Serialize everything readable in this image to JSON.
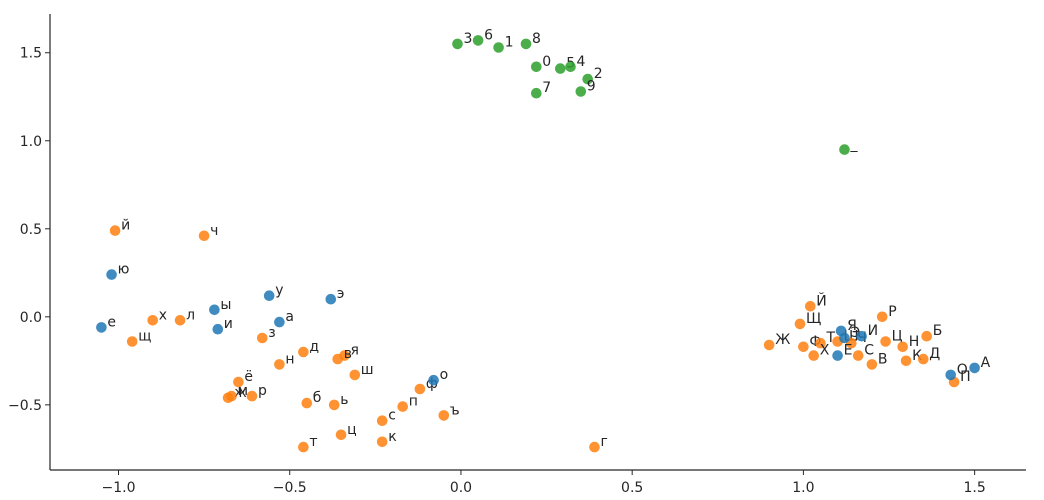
{
  "chart_data": {
    "type": "scatter",
    "title": "",
    "xlabel": "",
    "ylabel": "",
    "xlim": [
      -1.2,
      1.65
    ],
    "ylim": [
      -0.87,
      1.72
    ],
    "grid": false,
    "x_ticks": [
      {
        "value": -1.0,
        "label": "−1.0"
      },
      {
        "value": -0.5,
        "label": "−0.5"
      },
      {
        "value": 0.0,
        "label": "0.0"
      },
      {
        "value": 0.5,
        "label": "0.5"
      },
      {
        "value": 1.0,
        "label": "1.0"
      },
      {
        "value": 1.5,
        "label": "1.5"
      }
    ],
    "y_ticks": [
      {
        "value": -0.5,
        "label": "−0.5"
      },
      {
        "value": 0.0,
        "label": "0.0"
      },
      {
        "value": 0.5,
        "label": "0.5"
      },
      {
        "value": 1.0,
        "label": "1.0"
      },
      {
        "value": 1.5,
        "label": "1.5"
      }
    ],
    "series": [
      {
        "color": "#ff7f0e",
        "points": [
          {
            "label": "й",
            "x": -1.01,
            "y": 0.49
          },
          {
            "label": "ч",
            "x": -0.75,
            "y": 0.46
          },
          {
            "label": "х",
            "x": -0.9,
            "y": -0.02
          },
          {
            "label": "л",
            "x": -0.82,
            "y": -0.02
          },
          {
            "label": "щ",
            "x": -0.96,
            "y": -0.14
          },
          {
            "label": "з",
            "x": -0.58,
            "y": -0.12
          },
          {
            "label": "д",
            "x": -0.46,
            "y": -0.2
          },
          {
            "label": "н",
            "x": -0.53,
            "y": -0.27
          },
          {
            "label": "я",
            "x": -0.34,
            "y": -0.22
          },
          {
            "label": "в",
            "x": -0.36,
            "y": -0.24
          },
          {
            "label": "ш",
            "x": -0.31,
            "y": -0.33
          },
          {
            "label": "ё",
            "x": -0.65,
            "y": -0.37
          },
          {
            "label": "ж",
            "x": -0.68,
            "y": -0.46
          },
          {
            "label": "м",
            "x": -0.67,
            "y": -0.45
          },
          {
            "label": "р",
            "x": -0.61,
            "y": -0.45
          },
          {
            "label": "б",
            "x": -0.45,
            "y": -0.49
          },
          {
            "label": "ь",
            "x": -0.37,
            "y": -0.5
          },
          {
            "label": "с",
            "x": -0.23,
            "y": -0.59
          },
          {
            "label": "п",
            "x": -0.17,
            "y": -0.51
          },
          {
            "label": "ф",
            "x": -0.12,
            "y": -0.41
          },
          {
            "label": "ъ",
            "x": -0.05,
            "y": -0.56
          },
          {
            "label": "ц",
            "x": -0.35,
            "y": -0.67
          },
          {
            "label": "к",
            "x": -0.23,
            "y": -0.71
          },
          {
            "label": "т",
            "x": -0.46,
            "y": -0.74
          },
          {
            "label": "г",
            "x": 0.39,
            "y": -0.74
          },
          {
            "label": "Й",
            "x": 1.02,
            "y": 0.06
          },
          {
            "label": "Щ",
            "x": 0.99,
            "y": -0.04
          },
          {
            "label": "Р",
            "x": 1.23,
            "y": 0.0
          },
          {
            "label": "Б",
            "x": 1.36,
            "y": -0.11
          },
          {
            "label": "Ж",
            "x": 0.9,
            "y": -0.16
          },
          {
            "label": "Ф",
            "x": 1.0,
            "y": -0.17
          },
          {
            "label": "Т",
            "x": 1.05,
            "y": -0.15
          },
          {
            "label": "Х",
            "x": 1.03,
            "y": -0.22
          },
          {
            "label": "Ш",
            "x": 1.1,
            "y": -0.14
          },
          {
            "label": "Ч",
            "x": 1.14,
            "y": -0.15
          },
          {
            "label": "Ц",
            "x": 1.24,
            "y": -0.14
          },
          {
            "label": "Н",
            "x": 1.29,
            "y": -0.17
          },
          {
            "label": "С",
            "x": 1.16,
            "y": -0.22
          },
          {
            "label": "В",
            "x": 1.2,
            "y": -0.27
          },
          {
            "label": "К",
            "x": 1.3,
            "y": -0.25
          },
          {
            "label": "Д",
            "x": 1.35,
            "y": -0.24
          },
          {
            "label": "П",
            "x": 1.44,
            "y": -0.37
          }
        ]
      },
      {
        "color": "#1f77b4",
        "points": [
          {
            "label": "ю",
            "x": -1.02,
            "y": 0.24
          },
          {
            "label": "е",
            "x": -1.05,
            "y": -0.06
          },
          {
            "label": "ы",
            "x": -0.72,
            "y": 0.04
          },
          {
            "label": "и",
            "x": -0.71,
            "y": -0.07
          },
          {
            "label": "у",
            "x": -0.56,
            "y": 0.12
          },
          {
            "label": "а",
            "x": -0.53,
            "y": -0.03
          },
          {
            "label": "э",
            "x": -0.38,
            "y": 0.1
          },
          {
            "label": "о",
            "x": -0.08,
            "y": -0.36
          },
          {
            "label": "Я",
            "x": 1.11,
            "y": -0.08
          },
          {
            "label": "Э",
            "x": 1.12,
            "y": -0.12
          },
          {
            "label": "И",
            "x": 1.17,
            "y": -0.11
          },
          {
            "label": "Е",
            "x": 1.1,
            "y": -0.22
          },
          {
            "label": "О",
            "x": 1.43,
            "y": -0.33
          },
          {
            "label": "А",
            "x": 1.5,
            "y": -0.29
          }
        ]
      },
      {
        "color": "#2ca02c",
        "points": [
          {
            "label": "3",
            "x": -0.01,
            "y": 1.55
          },
          {
            "label": "6",
            "x": 0.05,
            "y": 1.57
          },
          {
            "label": "1",
            "x": 0.11,
            "y": 1.53
          },
          {
            "label": "8",
            "x": 0.19,
            "y": 1.55
          },
          {
            "label": "0",
            "x": 0.22,
            "y": 1.42
          },
          {
            "label": "5",
            "x": 0.29,
            "y": 1.41
          },
          {
            "label": "4",
            "x": 0.32,
            "y": 1.42
          },
          {
            "label": "2",
            "x": 0.37,
            "y": 1.35
          },
          {
            "label": "7",
            "x": 0.22,
            "y": 1.27
          },
          {
            "label": "9",
            "x": 0.35,
            "y": 1.28
          },
          {
            "label": "_",
            "x": 1.12,
            "y": 0.95
          }
        ]
      }
    ]
  }
}
